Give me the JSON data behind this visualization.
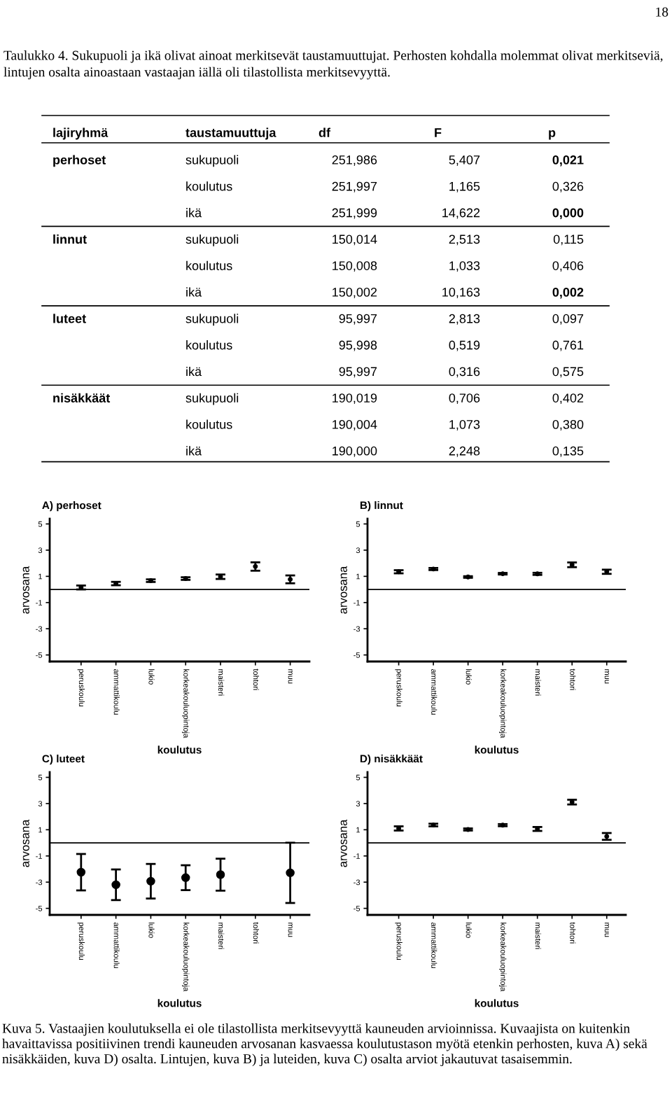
{
  "chart_data": [
    {
      "type": "other",
      "title": "Taulukko 4. Sukupuoli ja ikä olivat ainoat merkitsevät taustamuuttujat. Perhosten kohdalla molemmat olivat merkitseviä, lintujen osalta ainoastaan vastaajan iällä oli tilastollista merkitsevyyttä.",
      "annotations": [
        "18",
        "lajiryhmä",
        "taustamuuttuja",
        "df",
        "F",
        "p",
        "perhoset",
        "sukupuoli",
        "251,986",
        "5,407",
        "0,021",
        null,
        "koulutus",
        "251,997",
        "1,165",
        "0,326",
        null,
        "ikä",
        "251,999",
        "14,622",
        "0,000",
        "linnut",
        "sukupuoli",
        "150,014",
        "2,513",
        "0,115",
        null,
        "koulutus",
        "150,008",
        "1,033",
        "0,406",
        null,
        "ikä",
        "150,002",
        "10,163",
        "0,002",
        "luteet",
        "sukupuoli",
        "95,997",
        "2,813",
        "0,097",
        null,
        "koulutus",
        "95,998",
        "0,519",
        "0,761",
        null,
        "ikä",
        "95,997",
        "0,316",
        "0,575",
        "nisäkkäät",
        "sukupuoli",
        "190,019",
        "0,706",
        "0,402",
        null,
        "koulutus",
        "190,004",
        "1,073",
        "0,380",
        null,
        "ikä",
        "190,000",
        "2,248",
        "0,135"
      ]
    },
    {
      "type": "scatter",
      "title": "A) perhoset",
      "xlabel": "koulutus",
      "ylabel": "arvosana",
      "categories": [
        "peruskoulu",
        "ammattikoulu",
        "lukio",
        "korkeakouluopintoja",
        "maisteri",
        "tohtori",
        "muu"
      ],
      "values": [
        0.15,
        0.45,
        0.67,
        0.83,
        0.97,
        1.75,
        0.77
      ],
      "errors": [
        0.15,
        0.13,
        0.1,
        0.1,
        0.17,
        0.32,
        0.3
      ],
      "color": "#000000",
      "marker": "circle",
      "ylim": [
        -5.5,
        5.4
      ],
      "yticks": [
        -5,
        -3,
        -1,
        1,
        3,
        5
      ],
      "ref_lines": [
        {
          "axis": "y",
          "value": 0
        }
      ],
      "grid": false,
      "legend": false
    },
    {
      "type": "scatter",
      "title": "B) linnut",
      "xlabel": "koulutus",
      "ylabel": "arvosana",
      "categories": [
        "peruskoulu",
        "ammattikoulu",
        "lukio",
        "korkeakouluopintoja",
        "maisteri",
        "tohtori",
        "muu"
      ],
      "values": [
        1.35,
        1.56,
        0.95,
        1.2,
        1.19,
        1.88,
        1.35
      ],
      "errors": [
        0.12,
        0.08,
        0.06,
        0.06,
        0.08,
        0.18,
        0.16
      ],
      "color": "#000000",
      "marker": "circle",
      "ylim": [
        -5.5,
        5.4
      ],
      "yticks": [
        -5,
        -3,
        -1,
        1,
        3,
        5
      ],
      "ref_lines": [
        {
          "axis": "y",
          "value": 0
        }
      ],
      "grid": false,
      "legend": false
    },
    {
      "type": "scatter",
      "title": "C) luteet",
      "xlabel": "koulutus",
      "ylabel": "arvosana",
      "categories": [
        "peruskoulu",
        "ammattikoulu",
        "lukio",
        "korkeakouluopintoja",
        "maisteri",
        "tohtori",
        "muu"
      ],
      "values": [
        -2.24,
        -3.2,
        -2.93,
        -2.66,
        -2.43,
        null,
        -2.29
      ],
      "errors": [
        1.39,
        1.17,
        1.32,
        0.95,
        1.22,
        null,
        2.3
      ],
      "color": "#000000",
      "marker": "circle",
      "ylim": [
        -5.5,
        5.4
      ],
      "yticks": [
        -5,
        -3,
        -1,
        1,
        3,
        5
      ],
      "ref_lines": [
        {
          "axis": "y",
          "value": 0
        }
      ],
      "grid": false,
      "legend": false
    },
    {
      "type": "scatter",
      "title": "D) nisäkkäät",
      "xlabel": "koulutus",
      "ylabel": "arvosana",
      "categories": [
        "peruskoulu",
        "ammattikoulu",
        "lukio",
        "korkeakouluopintoja",
        "maisteri",
        "tohtori",
        "muu"
      ],
      "values": [
        1.1,
        1.36,
        1.02,
        1.35,
        1.06,
        3.11,
        0.49
      ],
      "errors": [
        0.16,
        0.1,
        0.08,
        0.08,
        0.15,
        0.18,
        0.26
      ],
      "color": "#000000",
      "marker": "circle",
      "ylim": [
        -5.5,
        5.4
      ],
      "yticks": [
        -5,
        -3,
        -1,
        1,
        3,
        5
      ],
      "ref_lines": [
        {
          "axis": "y",
          "value": 0
        }
      ],
      "grid": false,
      "legend": false,
      "annotations": [
        "Kuva 5. Vastaajien koulutuksella ei ole tilastollista merkitsevyyttä kauneuden arvioinnissa. Kuvaajista on kuitenkin havaittavissa positiivinen trendi kauneuden arvosanan kasvaessa koulutustason myötä etenkin perhosten, kuva A) sekä nisäkkäiden, kuva D) osalta. Lintujen, kuva B) ja luteiden, kuva C) osalta arviot jakautuvat tasaisemmin."
      ]
    }
  ]
}
